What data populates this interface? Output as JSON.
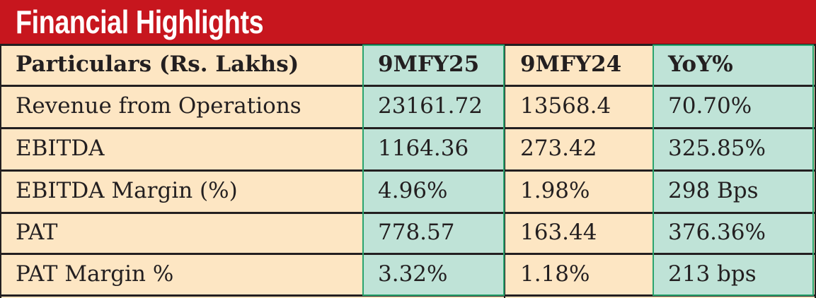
{
  "header": {
    "title": "Financial Highlights"
  },
  "table": {
    "columns": [
      "Particulars (Rs. Lakhs)",
      "9MFY25",
      "9MFY24",
      "YoY%"
    ],
    "rows": [
      [
        "Revenue from Operations",
        "23161.72",
        "13568.4",
        "70.70%"
      ],
      [
        "EBITDA",
        "1164.36",
        "273.42",
        "325.85%"
      ],
      [
        "EBITDA Margin (%)",
        "4.96%",
        "1.98%",
        "298 Bps"
      ],
      [
        "PAT",
        "778.57",
        "163.44",
        "376.36%"
      ],
      [
        "PAT Margin %",
        "3.32%",
        "1.18%",
        "213  bps"
      ]
    ]
  }
}
